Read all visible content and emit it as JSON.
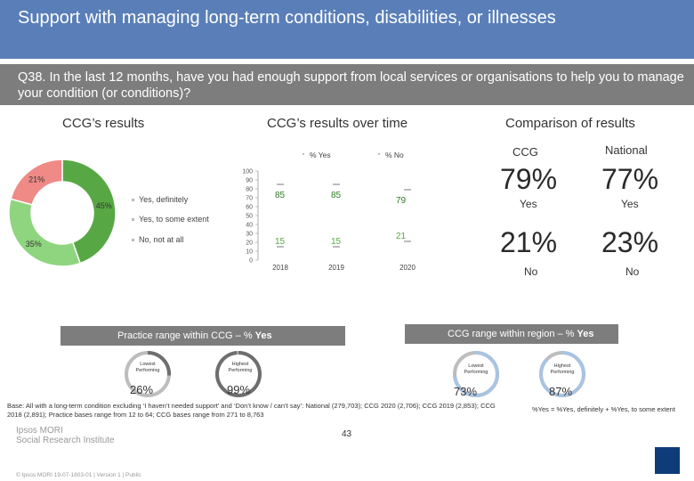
{
  "header": {
    "title": "Support with managing long-term conditions, disabilities, or illnesses",
    "question": "Q38. In the last 12 months, have you had enough support from local services or organisations to help you to manage your condition (or conditions)?"
  },
  "sections": {
    "ccg": "CCG’s results",
    "over_time": "CCG’s results over time",
    "comparison": "Comparison of results"
  },
  "colors": {
    "definitely": "#57a845",
    "some_extent": "#8fd57f",
    "not_at_all": "#ef8a86",
    "title_bar": "#5a7fb8",
    "grey_bar": "#7d7d7d",
    "gauge_track": "#bdbdbd",
    "gauge_ccg": "#6e6e6e",
    "gauge_region": "#a9c3e2",
    "badge": "#0d3c78"
  },
  "chart_data": [
    {
      "type": "pie",
      "slices": [
        {
          "label": "Yes, definitely",
          "value": 45,
          "value_label": "45%"
        },
        {
          "label": "Yes, to some extent",
          "value": 35,
          "value_label": "35%"
        },
        {
          "label": "No, not at all",
          "value": 21,
          "value_label": "21%"
        }
      ]
    },
    {
      "type": "line",
      "categories": [
        "2018",
        "2019",
        "2020"
      ],
      "series": [
        {
          "name": "% Yes",
          "values": [
            85,
            85,
            79
          ]
        },
        {
          "name": "% No",
          "values": [
            15,
            15,
            21
          ]
        }
      ],
      "ylim": [
        0,
        100
      ],
      "yticks": [
        "0",
        "10",
        "20",
        "30",
        "40",
        "50",
        "60",
        "70",
        "80",
        "90",
        "100"
      ],
      "legend": "top"
    }
  ],
  "comparison": {
    "col_ccg": "CCG",
    "col_national": "National",
    "yes_ccg": "79%",
    "yes_national": "77%",
    "yes_label": "Yes",
    "no_ccg": "21%",
    "no_national": "23%",
    "no_label": "No"
  },
  "practice_range": {
    "title_prefix": "Practice range within CCG – % ",
    "title_bold": "Yes",
    "lowest_label": "Lowest Performing",
    "lowest_value": "26%",
    "lowest_fraction": 0.26,
    "highest_label": "Highest Performing",
    "highest_value": "99%",
    "highest_fraction": 0.99
  },
  "region_range": {
    "title_prefix": "CCG range within region – % ",
    "title_bold": "Yes",
    "lowest_label": "Lowest Performing",
    "lowest_value": "73%",
    "lowest_fraction": 0.73,
    "highest_label": "Highest Performing",
    "highest_value": "87%",
    "highest_fraction": 0.87
  },
  "footer": {
    "base": "Base: All with a long-term condition excluding ‘I haven’t needed support’ and ‘Don’t know / can’t say’: National (279,703); CCG 2020 (2,706); CCG 2019 (2,853); CCG 2018 (2,891); Practice bases range from 12 to 64; CCG bases range from 271 to 8,763",
    "note": "%Yes = %Yes, definitely + %Yes, to some extent",
    "logo_line1": "Ipsos MORI",
    "logo_line2": "Social Research Institute",
    "copyright": "© Ipsos MORI     19-07-1803-01 | Version 1 | Public",
    "page": "43"
  }
}
